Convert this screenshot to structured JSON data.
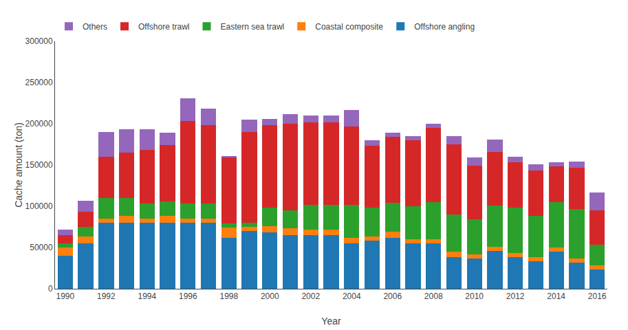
{
  "chart_data": {
    "type": "bar",
    "stacked": true,
    "categories": [
      "1990",
      null,
      "1992",
      null,
      "1994",
      null,
      "1996",
      null,
      "1998",
      null,
      "2000",
      null,
      "2002",
      null,
      "2004",
      null,
      "2006",
      null,
      "2008",
      null,
      "2010",
      null,
      "2012",
      null,
      "2014",
      null,
      "2016"
    ],
    "series": [
      {
        "name": "Offshore angling",
        "values": [
          40000,
          55000,
          80000,
          80000,
          80000,
          80000,
          80000,
          80000,
          62000,
          70000,
          68000,
          65000,
          65000,
          65000,
          55000,
          58000,
          62000,
          55000,
          55000,
          38000,
          37000,
          46000,
          38000,
          33000,
          45000,
          32000,
          23000
        ]
      },
      {
        "name": "Coastal composite",
        "values": [
          10000,
          8000,
          5000,
          8000,
          5000,
          8000,
          5000,
          5000,
          12000,
          5000,
          8000,
          8000,
          7000,
          7000,
          7000,
          5000,
          7000,
          5000,
          5000,
          7000,
          5000,
          5000,
          5000,
          5000,
          5000,
          5000,
          5000
        ]
      },
      {
        "name": "Eastern sea trawl",
        "values": [
          5000,
          12000,
          25000,
          22000,
          18000,
          18000,
          18000,
          18000,
          5000,
          5000,
          22000,
          22000,
          30000,
          30000,
          40000,
          35000,
          35000,
          40000,
          45000,
          45000,
          42000,
          50000,
          55000,
          50000,
          55000,
          60000,
          25000
        ]
      },
      {
        "name": "Offshore trawl",
        "values": [
          10000,
          18000,
          50000,
          55000,
          65000,
          68000,
          100000,
          95000,
          80000,
          110000,
          100000,
          105000,
          100000,
          100000,
          95000,
          75000,
          80000,
          80000,
          90000,
          85000,
          65000,
          65000,
          55000,
          55000,
          43000,
          50000,
          42000
        ]
      },
      {
        "name": "Others",
        "values": [
          7000,
          14000,
          30000,
          28000,
          25000,
          15000,
          28000,
          20000,
          2000,
          15000,
          8000,
          12000,
          8000,
          8000,
          20000,
          7000,
          5000,
          5000,
          5000,
          10000,
          10000,
          15000,
          7000,
          8000,
          5000,
          7000,
          22000
        ]
      }
    ],
    "xlabel": "Year",
    "ylabel": "Cache amount (ton)",
    "ylim": [
      0,
      300000
    ],
    "yticks": [
      0,
      50000,
      100000,
      150000,
      200000,
      250000,
      300000
    ],
    "grid": false,
    "legend": "top"
  }
}
